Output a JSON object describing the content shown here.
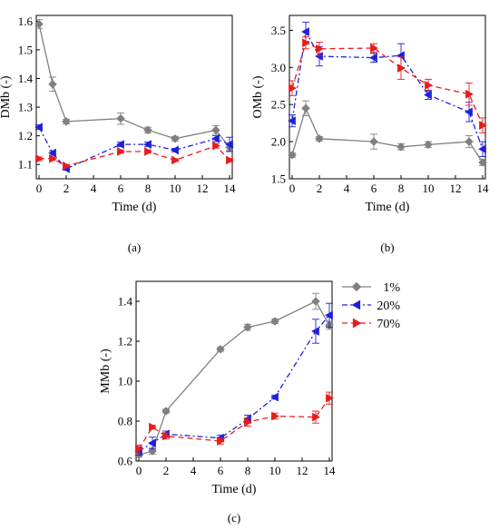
{
  "series_styles": [
    {
      "name": "1%",
      "color": "#808080",
      "marker": "diamond",
      "dash": "solid"
    },
    {
      "name": "20%",
      "color": "#1f1fdc",
      "marker": "triangle-left",
      "dash": "dashdot"
    },
    {
      "name": "70%",
      "color": "#e81c1c",
      "marker": "triangle-right",
      "dash": "dashed"
    }
  ],
  "chart_data": [
    {
      "type": "line",
      "panel_label": "(a)",
      "xlabel": "Time (d)",
      "ylabel": "DMb (-)",
      "xlim": [
        -0.2,
        14.2
      ],
      "ylim": [
        1.05,
        1.62
      ],
      "xticks": [
        0,
        2,
        4,
        6,
        8,
        10,
        12,
        14
      ],
      "xtick_labels": [
        "0",
        "2",
        "4",
        "6",
        "8",
        "10",
        "12",
        "14"
      ],
      "yticks": [
        1.1,
        1.2,
        1.3,
        1.4,
        1.5,
        1.6
      ],
      "ytick_labels": [
        "1.1",
        "1.2",
        "1.3",
        "1.4",
        "1.5",
        "1.6"
      ],
      "series": [
        {
          "x": [
            0,
            1,
            2,
            6,
            8,
            10,
            13,
            14
          ],
          "y": [
            1.59,
            1.38,
            1.25,
            1.26,
            1.22,
            1.19,
            1.22,
            1.16
          ],
          "err": [
            0.015,
            0.025,
            0.008,
            0.02,
            0.01,
            0.008,
            0.015,
            0.012
          ]
        },
        {
          "x": [
            0,
            1,
            2,
            6,
            8,
            10,
            13,
            14
          ],
          "y": [
            1.23,
            1.14,
            1.085,
            1.17,
            1.17,
            1.15,
            1.19,
            1.17
          ],
          "err": [
            0.008,
            0.008,
            0.005,
            0.008,
            0.008,
            0.006,
            0.01,
            0.025
          ]
        },
        {
          "x": [
            0,
            1,
            2,
            6,
            8,
            10,
            13,
            14
          ],
          "y": [
            1.12,
            1.12,
            1.095,
            1.145,
            1.145,
            1.115,
            1.165,
            1.115
          ],
          "err": [
            0.006,
            0.006,
            0.005,
            0.006,
            0.006,
            0.005,
            0.008,
            0.006
          ]
        }
      ]
    },
    {
      "type": "line",
      "panel_label": "(b)",
      "xlabel": "Time (d)",
      "ylabel": "OMb (-)",
      "xlim": [
        -0.2,
        14.2
      ],
      "ylim": [
        1.5,
        3.7
      ],
      "xticks": [
        0,
        2,
        4,
        6,
        8,
        10,
        12,
        14
      ],
      "xtick_labels": [
        "0",
        "2",
        "4",
        "6",
        "8",
        "10",
        "12",
        "14"
      ],
      "yticks": [
        1.5,
        2.0,
        2.5,
        3.0,
        3.5
      ],
      "ytick_labels": [
        "1.5",
        "2.0",
        "2.5",
        "3.0",
        "3.5"
      ],
      "series": [
        {
          "x": [
            0,
            1,
            2,
            6,
            8,
            10,
            13,
            14
          ],
          "y": [
            1.82,
            2.45,
            2.04,
            2.0,
            1.93,
            1.96,
            2.0,
            1.72
          ],
          "err": [
            0.03,
            0.1,
            0.03,
            0.1,
            0.04,
            0.04,
            0.08,
            0.04
          ]
        },
        {
          "x": [
            0,
            1,
            2,
            6,
            8,
            10,
            13,
            14
          ],
          "y": [
            2.28,
            3.48,
            3.15,
            3.13,
            3.16,
            2.63,
            2.4,
            1.9
          ],
          "err": [
            0.08,
            0.13,
            0.13,
            0.06,
            0.16,
            0.06,
            0.13,
            0.1
          ]
        },
        {
          "x": [
            0,
            1,
            2,
            6,
            8,
            10,
            13,
            14
          ],
          "y": [
            2.72,
            3.33,
            3.25,
            3.26,
            2.99,
            2.76,
            2.64,
            2.22
          ],
          "err": [
            0.1,
            0.08,
            0.09,
            0.06,
            0.15,
            0.08,
            0.15,
            0.1
          ]
        }
      ]
    },
    {
      "type": "line",
      "panel_label": "(c)",
      "xlabel": "Time (d)",
      "ylabel": "MMb (-)",
      "xlim": [
        -0.2,
        14.2
      ],
      "ylim": [
        0.6,
        1.5
      ],
      "xticks": [
        0,
        2,
        4,
        6,
        8,
        10,
        12,
        14
      ],
      "xtick_labels": [
        "0",
        "2",
        "4",
        "6",
        "8",
        "10",
        "12",
        "14"
      ],
      "yticks": [
        0.6,
        0.8,
        1.0,
        1.2,
        1.4
      ],
      "ytick_labels": [
        "0.6",
        "0.8",
        "1.0",
        "1.2",
        "1.4"
      ],
      "legend": {
        "position": "right",
        "entries": [
          "1%",
          "20%",
          "70%"
        ]
      },
      "series": [
        {
          "name": "1%",
          "x": [
            0,
            1,
            2,
            6,
            8,
            10,
            13,
            14
          ],
          "y": [
            0.63,
            0.65,
            0.85,
            1.16,
            1.27,
            1.3,
            1.4,
            1.28
          ],
          "err": [
            0.01,
            0.015,
            0.01,
            0.01,
            0.015,
            0.012,
            0.04,
            0.02
          ]
        },
        {
          "name": "20%",
          "x": [
            0,
            1,
            2,
            6,
            8,
            10,
            13,
            14
          ],
          "y": [
            0.65,
            0.69,
            0.735,
            0.715,
            0.81,
            0.92,
            1.25,
            1.33
          ],
          "err": [
            0.02,
            0.03,
            0.015,
            0.015,
            0.02,
            0.01,
            0.06,
            0.06
          ]
        },
        {
          "name": "70%",
          "x": [
            0,
            1,
            2,
            6,
            8,
            10,
            13,
            14
          ],
          "y": [
            0.66,
            0.77,
            0.725,
            0.7,
            0.795,
            0.825,
            0.82,
            0.915
          ],
          "err": [
            0.02,
            0.01,
            0.015,
            0.015,
            0.02,
            0.015,
            0.03,
            0.03
          ]
        }
      ]
    }
  ]
}
